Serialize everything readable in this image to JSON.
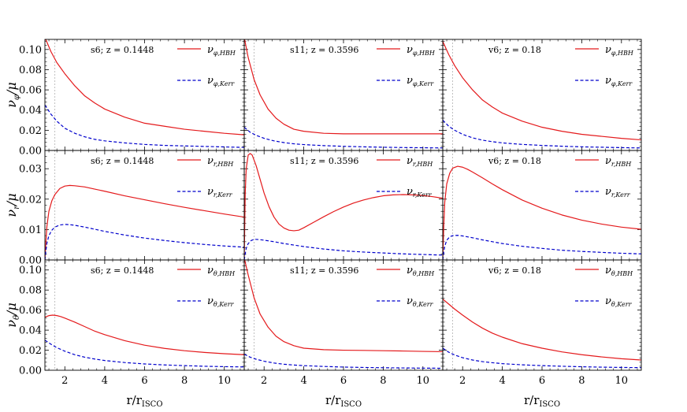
{
  "chart_data": {
    "type": "line",
    "layout": "3x3 grid of panels, shared x axis per column, shared y axis per row",
    "xlabel": "r/r",
    "xlabel_sub": "ISCO",
    "xlim": [
      1,
      11
    ],
    "xticks": [
      "2",
      "4",
      "6",
      "8",
      "10"
    ],
    "xtick_values": [
      2,
      4,
      6,
      8,
      10
    ],
    "isco_marker_x": 1.5,
    "colors": {
      "hbh": "#e41a1c",
      "kerr": "#0000cc",
      "isco_marker": "#b0b0b0"
    },
    "columns": [
      {
        "model": "s6",
        "z_text": "s6; z = 0.1448"
      },
      {
        "model": "s11",
        "z_text": "s11; z = 0.3596"
      },
      {
        "model": "v6",
        "z_text": "v6; z = 0.18"
      }
    ],
    "rows": [
      {
        "name": "phi",
        "ylabel": "ν",
        "ylabel_sub": "φ",
        "ylabel_tail": "/μ",
        "ylim": [
          0,
          0.11
        ],
        "yticks": [
          "0.00",
          "0.02",
          "0.04",
          "0.06",
          "0.08",
          "0.10"
        ],
        "ytick_values": [
          0,
          0.02,
          0.04,
          0.06,
          0.08,
          0.1
        ],
        "legend": {
          "hbh_main": "ν",
          "hbh_sub": "φ,HBH",
          "kerr_main": "ν",
          "kerr_sub": "φ,Kerr"
        }
      },
      {
        "name": "r",
        "ylabel": "ν",
        "ylabel_sub": "r",
        "ylabel_tail": "/μ",
        "ylim": [
          0,
          0.036
        ],
        "yticks": [
          "0.00",
          "0.01",
          "0.02",
          "0.03"
        ],
        "ytick_values": [
          0,
          0.01,
          0.02,
          0.03
        ],
        "legend": {
          "hbh_main": "ν",
          "hbh_sub": "r,HBH",
          "kerr_main": "ν",
          "kerr_sub": "r,Kerr"
        }
      },
      {
        "name": "theta",
        "ylabel": "ν",
        "ylabel_sub": "θ",
        "ylabel_tail": "/μ",
        "ylim": [
          0,
          0.11
        ],
        "yticks": [
          "0.00",
          "0.02",
          "0.04",
          "0.06",
          "0.08",
          "0.10"
        ],
        "ytick_values": [
          0,
          0.02,
          0.04,
          0.06,
          0.08,
          0.1
        ],
        "legend": {
          "hbh_main": "ν",
          "hbh_sub": "θ,HBH",
          "kerr_main": "ν",
          "kerr_sub": "θ,Kerr"
        }
      }
    ],
    "panels": [
      {
        "row": 0,
        "col": 0,
        "series": [
          {
            "key": "hbh",
            "x": [
              1.0,
              1.3,
              1.6,
              2.0,
              2.5,
              3.0,
              3.5,
              4.0,
              5.0,
              6.0,
              7.0,
              8.0,
              9.0,
              10.0,
              11.0
            ],
            "y": [
              0.112,
              0.098,
              0.087,
              0.076,
              0.064,
              0.054,
              0.047,
              0.041,
              0.033,
              0.027,
              0.024,
              0.021,
              0.019,
              0.017,
              0.0155
            ]
          },
          {
            "key": "kerr",
            "x": [
              1.0,
              1.3,
              1.6,
              2.0,
              2.5,
              3.0,
              3.5,
              4.0,
              5.0,
              6.0,
              7.0,
              8.0,
              9.0,
              10.0,
              11.0
            ],
            "y": [
              0.045,
              0.036,
              0.029,
              0.022,
              0.017,
              0.0135,
              0.011,
              0.0095,
              0.0075,
              0.006,
              0.005,
              0.0045,
              0.004,
              0.0035,
              0.003
            ]
          }
        ]
      },
      {
        "row": 0,
        "col": 1,
        "series": [
          {
            "key": "hbh",
            "x": [
              1.0,
              1.2,
              1.5,
              1.8,
              2.2,
              2.6,
              3.0,
              3.5,
              4.0,
              5.0,
              6.0,
              7.0,
              8.0,
              9.0,
              10.0,
              11.0
            ],
            "y": [
              0.112,
              0.092,
              0.07,
              0.055,
              0.041,
              0.032,
              0.026,
              0.021,
              0.019,
              0.017,
              0.0165,
              0.0165,
              0.0165,
              0.0165,
              0.0165,
              0.0165
            ]
          },
          {
            "key": "kerr",
            "x": [
              1.0,
              1.3,
              1.6,
              2.0,
              2.5,
              3.0,
              3.5,
              4.0,
              5.0,
              6.0,
              7.0,
              8.0,
              9.0,
              10.0,
              11.0
            ],
            "y": [
              0.023,
              0.018,
              0.015,
              0.012,
              0.0095,
              0.0078,
              0.0066,
              0.0058,
              0.0048,
              0.0041,
              0.0036,
              0.0032,
              0.0029,
              0.0027,
              0.0025
            ]
          }
        ]
      },
      {
        "row": 0,
        "col": 2,
        "series": [
          {
            "key": "hbh",
            "x": [
              1.0,
              1.3,
              1.6,
              2.0,
              2.5,
              3.0,
              3.5,
              4.0,
              5.0,
              6.0,
              7.0,
              8.0,
              9.0,
              10.0,
              11.0
            ],
            "y": [
              0.108,
              0.095,
              0.084,
              0.072,
              0.06,
              0.05,
              0.043,
              0.037,
              0.029,
              0.023,
              0.019,
              0.016,
              0.014,
              0.012,
              0.0105
            ]
          },
          {
            "key": "kerr",
            "x": [
              1.0,
              1.3,
              1.6,
              2.0,
              2.5,
              3.0,
              3.5,
              4.0,
              5.0,
              6.0,
              7.0,
              8.0,
              9.0,
              10.0,
              11.0
            ],
            "y": [
              0.03,
              0.024,
              0.02,
              0.016,
              0.0125,
              0.0102,
              0.0087,
              0.0075,
              0.006,
              0.005,
              0.0042,
              0.0036,
              0.0032,
              0.0028,
              0.0025
            ]
          }
        ]
      },
      {
        "row": 1,
        "col": 0,
        "series": [
          {
            "key": "hbh",
            "x": [
              1.0,
              1.05,
              1.1,
              1.2,
              1.35,
              1.5,
              1.75,
              2.0,
              2.25,
              2.5,
              3.0,
              3.5,
              4.0,
              5.0,
              6.0,
              7.0,
              8.0,
              9.0,
              10.0,
              11.0
            ],
            "y": [
              0.0,
              0.006,
              0.011,
              0.016,
              0.0195,
              0.0215,
              0.0235,
              0.0243,
              0.0245,
              0.0244,
              0.024,
              0.0233,
              0.0226,
              0.0211,
              0.0198,
              0.0185,
              0.0173,
              0.0162,
              0.0151,
              0.0141
            ]
          },
          {
            "key": "kerr",
            "x": [
              1.0,
              1.05,
              1.1,
              1.2,
              1.35,
              1.5,
              1.75,
              2.0,
              2.25,
              2.5,
              3.0,
              3.5,
              4.0,
              5.0,
              6.0,
              7.0,
              8.0,
              9.0,
              10.0,
              11.0
            ],
            "y": [
              0.0,
              0.003,
              0.0055,
              0.008,
              0.0098,
              0.0108,
              0.0115,
              0.0117,
              0.0116,
              0.0114,
              0.0108,
              0.0101,
              0.0094,
              0.0082,
              0.0072,
              0.0064,
              0.0057,
              0.0051,
              0.0046,
              0.0042
            ]
          }
        ]
      },
      {
        "row": 1,
        "col": 1,
        "series": [
          {
            "key": "hbh",
            "x": [
              1.0,
              1.05,
              1.1,
              1.2,
              1.3,
              1.4,
              1.6,
              1.8,
              2.0,
              2.25,
              2.5,
              2.75,
              3.0,
              3.25,
              3.5,
              3.75,
              4.0,
              4.5,
              5.0,
              5.5,
              6.0,
              6.5,
              7.0,
              7.5,
              8.0,
              8.5,
              9.0,
              9.5,
              10.0,
              10.5,
              11.0
            ],
            "y": [
              0.0,
              0.022,
              0.03,
              0.0345,
              0.035,
              0.0345,
              0.031,
              0.0265,
              0.022,
              0.0175,
              0.0141,
              0.0118,
              0.0105,
              0.0098,
              0.0096,
              0.0098,
              0.0106,
              0.0124,
              0.0142,
              0.0159,
              0.0174,
              0.0187,
              0.0197,
              0.0205,
              0.0211,
              0.0214,
              0.0215,
              0.0214,
              0.0212,
              0.0208,
              0.0203
            ]
          },
          {
            "key": "kerr",
            "x": [
              1.0,
              1.05,
              1.1,
              1.2,
              1.35,
              1.5,
              1.75,
              2.0,
              2.5,
              3.0,
              3.5,
              4.0,
              5.0,
              6.0,
              7.0,
              8.0,
              9.0,
              10.0,
              11.0
            ],
            "y": [
              0.0,
              0.002,
              0.0038,
              0.0054,
              0.0064,
              0.0068,
              0.0067,
              0.0065,
              0.006,
              0.0054,
              0.0049,
              0.0044,
              0.0036,
              0.003,
              0.0026,
              0.0023,
              0.002,
              0.0018,
              0.0016
            ]
          }
        ]
      },
      {
        "row": 1,
        "col": 2,
        "series": [
          {
            "key": "hbh",
            "x": [
              1.0,
              1.05,
              1.1,
              1.2,
              1.35,
              1.5,
              1.75,
              2.0,
              2.25,
              2.5,
              3.0,
              3.5,
              4.0,
              5.0,
              6.0,
              7.0,
              8.0,
              9.0,
              10.0,
              11.0
            ],
            "y": [
              0.0,
              0.011,
              0.019,
              0.025,
              0.0285,
              0.0302,
              0.0308,
              0.0305,
              0.0298,
              0.0289,
              0.027,
              0.025,
              0.0231,
              0.0197,
              0.017,
              0.0148,
              0.0131,
              0.0118,
              0.0108,
              0.0101
            ]
          },
          {
            "key": "kerr",
            "x": [
              1.0,
              1.05,
              1.1,
              1.2,
              1.35,
              1.5,
              1.75,
              2.0,
              2.25,
              2.5,
              3.0,
              3.5,
              4.0,
              5.0,
              6.0,
              7.0,
              8.0,
              9.0,
              10.0,
              11.0
            ],
            "y": [
              0.0,
              0.0025,
              0.0045,
              0.0065,
              0.0076,
              0.008,
              0.0081,
              0.0079,
              0.0076,
              0.0073,
              0.0066,
              0.006,
              0.0054,
              0.0045,
              0.0038,
              0.0032,
              0.0028,
              0.0025,
              0.0022,
              0.002
            ]
          }
        ]
      },
      {
        "row": 2,
        "col": 0,
        "series": [
          {
            "key": "hbh",
            "x": [
              1.0,
              1.2,
              1.4,
              1.6,
              1.8,
              2.0,
              2.5,
              3.0,
              3.5,
              4.0,
              5.0,
              6.0,
              7.0,
              8.0,
              9.0,
              10.0,
              11.0
            ],
            "y": [
              0.053,
              0.0545,
              0.055,
              0.0545,
              0.0535,
              0.052,
              0.048,
              0.0435,
              0.039,
              0.0355,
              0.0295,
              0.025,
              0.0218,
              0.0195,
              0.0178,
              0.0165,
              0.0155
            ]
          },
          {
            "key": "kerr",
            "x": [
              1.0,
              1.3,
              1.6,
              2.0,
              2.5,
              3.0,
              3.5,
              4.0,
              5.0,
              6.0,
              7.0,
              8.0,
              9.0,
              10.0,
              11.0
            ],
            "y": [
              0.03,
              0.026,
              0.0225,
              0.019,
              0.0155,
              0.013,
              0.0112,
              0.0097,
              0.0077,
              0.0063,
              0.0053,
              0.0046,
              0.004,
              0.0036,
              0.0033
            ]
          }
        ]
      },
      {
        "row": 2,
        "col": 1,
        "series": [
          {
            "key": "hbh",
            "x": [
              1.0,
              1.2,
              1.5,
              1.8,
              2.2,
              2.6,
              3.0,
              3.5,
              4.0,
              5.0,
              6.0,
              7.0,
              8.0,
              9.0,
              10.0,
              11.0
            ],
            "y": [
              0.112,
              0.095,
              0.072,
              0.056,
              0.043,
              0.034,
              0.0285,
              0.0245,
              0.022,
              0.0205,
              0.02,
              0.0198,
              0.0195,
              0.0192,
              0.0188,
              0.0185
            ]
          },
          {
            "key": "kerr",
            "x": [
              1.0,
              1.3,
              1.6,
              2.0,
              2.5,
              3.0,
              3.5,
              4.0,
              5.0,
              6.0,
              7.0,
              8.0,
              9.0,
              10.0,
              11.0
            ],
            "y": [
              0.016,
              0.013,
              0.011,
              0.009,
              0.0072,
              0.006,
              0.0052,
              0.0046,
              0.0038,
              0.0032,
              0.0028,
              0.0025,
              0.0023,
              0.0021,
              0.002
            ]
          }
        ]
      },
      {
        "row": 2,
        "col": 2,
        "series": [
          {
            "key": "hbh",
            "x": [
              1.0,
              1.3,
              1.6,
              2.0,
              2.5,
              3.0,
              3.5,
              4.0,
              5.0,
              6.0,
              7.0,
              8.0,
              9.0,
              10.0,
              11.0
            ],
            "y": [
              0.071,
              0.066,
              0.061,
              0.055,
              0.048,
              0.042,
              0.037,
              0.033,
              0.0265,
              0.022,
              0.0183,
              0.0155,
              0.0133,
              0.0115,
              0.0102
            ]
          },
          {
            "key": "kerr",
            "x": [
              1.0,
              1.3,
              1.6,
              2.0,
              2.5,
              3.0,
              3.5,
              4.0,
              5.0,
              6.0,
              7.0,
              8.0,
              9.0,
              10.0,
              11.0
            ],
            "y": [
              0.022,
              0.018,
              0.0152,
              0.0125,
              0.0102,
              0.0086,
              0.0075,
              0.0066,
              0.0054,
              0.0046,
              0.004,
              0.0035,
              0.0031,
              0.0028,
              0.0026
            ]
          }
        ]
      }
    ]
  }
}
